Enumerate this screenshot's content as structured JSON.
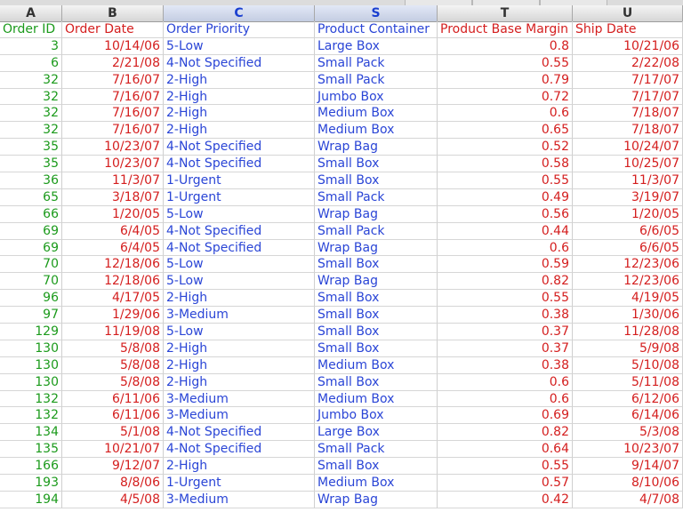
{
  "columns": [
    {
      "letter": "A",
      "header": "Order ID",
      "color": "#1b9a1b"
    },
    {
      "letter": "B",
      "header": "Order Date",
      "color": "#d41e1e"
    },
    {
      "letter": "C",
      "header": "Order Priority",
      "color": "#2a45d6"
    },
    {
      "letter": "S",
      "header": "Product Container",
      "color": "#2a45d6"
    },
    {
      "letter": "T",
      "header": "Product Base Margin",
      "color": "#d41e1e"
    },
    {
      "letter": "U",
      "header": "Ship Date",
      "color": "#d41e1e"
    }
  ],
  "rows": [
    [
      "3",
      "10/14/06",
      "5-Low",
      "Large Box",
      "0.8",
      "10/21/06"
    ],
    [
      "6",
      "2/21/08",
      "4-Not Specified",
      "Small Pack",
      "0.55",
      "2/22/08"
    ],
    [
      "32",
      "7/16/07",
      "2-High",
      "Small Pack",
      "0.79",
      "7/17/07"
    ],
    [
      "32",
      "7/16/07",
      "2-High",
      "Jumbo Box",
      "0.72",
      "7/17/07"
    ],
    [
      "32",
      "7/16/07",
      "2-High",
      "Medium Box",
      "0.6",
      "7/18/07"
    ],
    [
      "32",
      "7/16/07",
      "2-High",
      "Medium Box",
      "0.65",
      "7/18/07"
    ],
    [
      "35",
      "10/23/07",
      "4-Not Specified",
      "Wrap Bag",
      "0.52",
      "10/24/07"
    ],
    [
      "35",
      "10/23/07",
      "4-Not Specified",
      "Small Box",
      "0.58",
      "10/25/07"
    ],
    [
      "36",
      "11/3/07",
      "1-Urgent",
      "Small Box",
      "0.55",
      "11/3/07"
    ],
    [
      "65",
      "3/18/07",
      "1-Urgent",
      "Small Pack",
      "0.49",
      "3/19/07"
    ],
    [
      "66",
      "1/20/05",
      "5-Low",
      "Wrap Bag",
      "0.56",
      "1/20/05"
    ],
    [
      "69",
      "6/4/05",
      "4-Not Specified",
      "Small Pack",
      "0.44",
      "6/6/05"
    ],
    [
      "69",
      "6/4/05",
      "4-Not Specified",
      "Wrap Bag",
      "0.6",
      "6/6/05"
    ],
    [
      "70",
      "12/18/06",
      "5-Low",
      "Small Box",
      "0.59",
      "12/23/06"
    ],
    [
      "70",
      "12/18/06",
      "5-Low",
      "Wrap Bag",
      "0.82",
      "12/23/06"
    ],
    [
      "96",
      "4/17/05",
      "2-High",
      "Small Box",
      "0.55",
      "4/19/05"
    ],
    [
      "97",
      "1/29/06",
      "3-Medium",
      "Small Box",
      "0.38",
      "1/30/06"
    ],
    [
      "129",
      "11/19/08",
      "5-Low",
      "Small Box",
      "0.37",
      "11/28/08"
    ],
    [
      "130",
      "5/8/08",
      "2-High",
      "Small Box",
      "0.37",
      "5/9/08"
    ],
    [
      "130",
      "5/8/08",
      "2-High",
      "Medium Box",
      "0.38",
      "5/10/08"
    ],
    [
      "130",
      "5/8/08",
      "2-High",
      "Small Box",
      "0.6",
      "5/11/08"
    ],
    [
      "132",
      "6/11/06",
      "3-Medium",
      "Medium Box",
      "0.6",
      "6/12/06"
    ],
    [
      "132",
      "6/11/06",
      "3-Medium",
      "Jumbo Box",
      "0.69",
      "6/14/06"
    ],
    [
      "134",
      "5/1/08",
      "4-Not Specified",
      "Large Box",
      "0.82",
      "5/3/08"
    ],
    [
      "135",
      "10/21/07",
      "4-Not Specified",
      "Small Pack",
      "0.64",
      "10/23/07"
    ],
    [
      "166",
      "9/12/07",
      "2-High",
      "Small Box",
      "0.55",
      "9/14/07"
    ],
    [
      "193",
      "8/8/06",
      "1-Urgent",
      "Medium Box",
      "0.57",
      "8/10/06"
    ],
    [
      "194",
      "4/5/08",
      "3-Medium",
      "Wrap Bag",
      "0.42",
      "4/7/08"
    ]
  ]
}
